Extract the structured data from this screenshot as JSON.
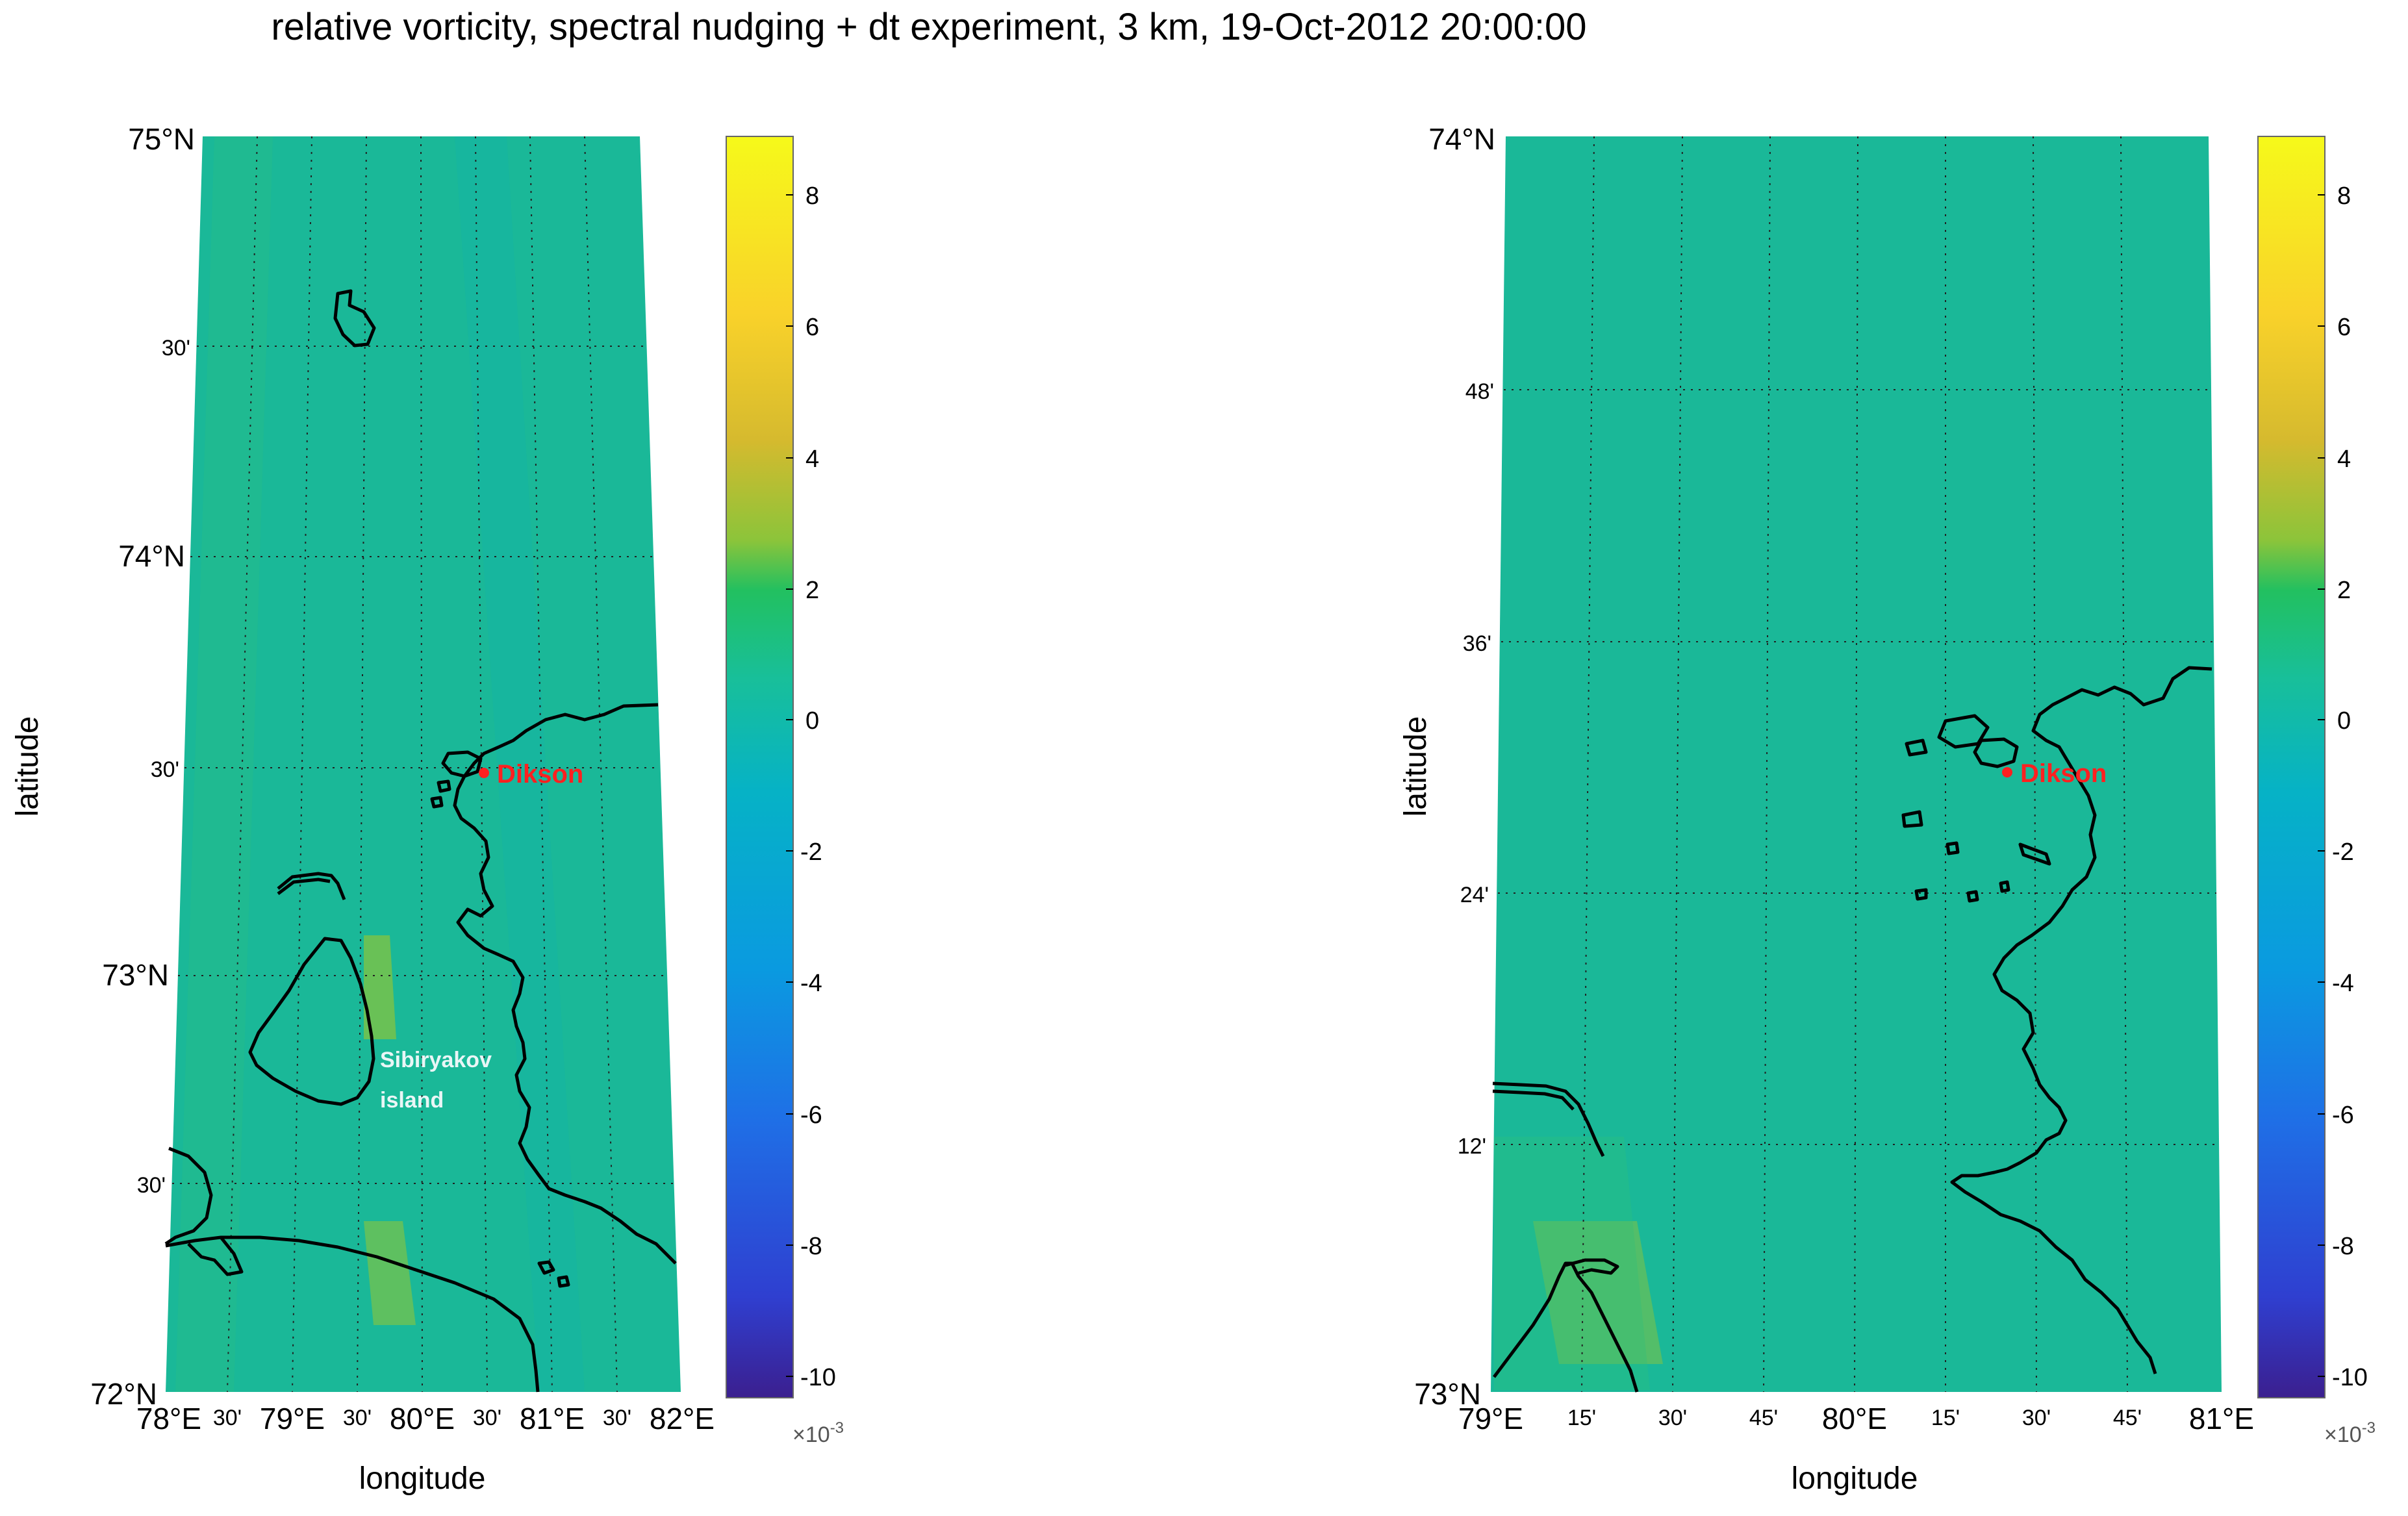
{
  "title": "relative vorticity, spectral nudging + dt experiment, 3 km, 19-Oct-2012 20:00:00",
  "colors": {
    "field": "#1ab898",
    "coastline": "#000000",
    "marker": "#ff2020",
    "island_label": "#e9f6f6",
    "gridline": "#222222"
  },
  "colorbar": {
    "ticks": [
      "8",
      "6",
      "4",
      "2",
      "0",
      "-2",
      "-4",
      "-6",
      "-8",
      "-10"
    ],
    "multiplier": "×10",
    "exponent": "-3",
    "range": [
      -10.5,
      8.8
    ],
    "stops": [
      "#3b1f8f",
      "#2f3fd0",
      "#1f6fe6",
      "#0a9ae0",
      "#06b2c6",
      "#18bf9a",
      "#22c060",
      "#8cc43a",
      "#d6ba2e",
      "#f9d22a",
      "#f6f91a"
    ]
  },
  "maps": [
    {
      "lat_ticks": [
        "75°N",
        "30'",
        "74°N",
        "30'",
        "73°N",
        "30'",
        "72°N"
      ],
      "lon_ticks": [
        "78°E",
        "30'",
        "79°E",
        "30'",
        "80°E",
        "30'",
        "81°E",
        "30'",
        "82°E"
      ],
      "xlabel": "longitude",
      "ylabel": "latitude",
      "city": "Dikson",
      "island_label": [
        "Sibiryakov",
        "island"
      ]
    },
    {
      "lat_ticks": [
        "74°N",
        "48'",
        "36'",
        "24'",
        "12'",
        "73°N"
      ],
      "lon_ticks": [
        "79°E",
        "15'",
        "30'",
        "45'",
        "80°E",
        "15'",
        "30'",
        "45'",
        "81°E"
      ],
      "xlabel": "longitude",
      "ylabel": "latitude",
      "city": "Dikson"
    }
  ]
}
